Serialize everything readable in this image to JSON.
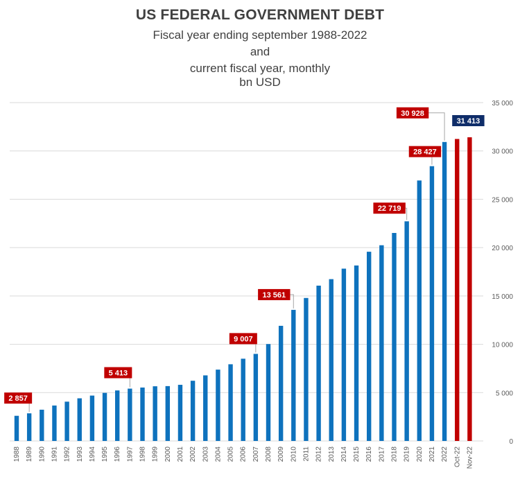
{
  "titles": {
    "line1": "US FEDERAL GOVERNMENT DEBT",
    "line2": "Fiscal year ending september 1988-2022",
    "line3": "and",
    "line4": "current fiscal year, monthly",
    "line5": "bn USD"
  },
  "colors": {
    "annual_bar": "#0E72BD",
    "monthly_bar": "#C00000",
    "annual_label_bg": "#C00000",
    "latest_label_bg": "#0F2D69",
    "grid": "#D9D9D9",
    "text": "#595959"
  },
  "chart_data": {
    "type": "bar",
    "title": "US FEDERAL GOVERNMENT DEBT",
    "ylim": [
      0,
      35000
    ],
    "y_ticks": [
      "0",
      "5 000",
      "10 000",
      "15 000",
      "20 000",
      "25 000",
      "30 000",
      "35 000"
    ],
    "y_tick_values": [
      0,
      5000,
      10000,
      15000,
      20000,
      25000,
      30000,
      35000
    ],
    "y_axis_side": "right",
    "grid": true,
    "categories": [
      "1988",
      "1989",
      "1990",
      "1991",
      "1992",
      "1993",
      "1994",
      "1995",
      "1996",
      "1997",
      "1998",
      "1999",
      "2000",
      "2001",
      "2002",
      "2003",
      "2004",
      "2005",
      "2006",
      "2007",
      "2008",
      "2009",
      "2010",
      "2011",
      "2012",
      "2013",
      "2014",
      "2015",
      "2016",
      "2017",
      "2018",
      "2019",
      "2020",
      "2021",
      "2022",
      "Oct-22",
      "Nov-22"
    ],
    "values": [
      2602,
      2857,
      3233,
      3665,
      4065,
      4411,
      4693,
      4974,
      5225,
      5413,
      5526,
      5656,
      5674,
      5807,
      6228,
      6783,
      7379,
      7933,
      8507,
      9007,
      10025,
      11910,
      13561,
      14790,
      16066,
      16738,
      17824,
      18151,
      19573,
      20245,
      21516,
      22719,
      26945,
      28427,
      30928,
      31238,
      31413
    ],
    "series_kind": [
      "annual",
      "annual",
      "annual",
      "annual",
      "annual",
      "annual",
      "annual",
      "annual",
      "annual",
      "annual",
      "annual",
      "annual",
      "annual",
      "annual",
      "annual",
      "annual",
      "annual",
      "annual",
      "annual",
      "annual",
      "annual",
      "annual",
      "annual",
      "annual",
      "annual",
      "annual",
      "annual",
      "annual",
      "annual",
      "annual",
      "annual",
      "annual",
      "annual",
      "annual",
      "annual",
      "monthly",
      "monthly"
    ],
    "data_labels": [
      {
        "category": "1989",
        "text": "2 857",
        "style": "red"
      },
      {
        "category": "1997",
        "text": "5 413",
        "style": "red"
      },
      {
        "category": "2007",
        "text": "9 007",
        "style": "red"
      },
      {
        "category": "2010",
        "text": "13 561",
        "style": "red"
      },
      {
        "category": "2019",
        "text": "22 719",
        "style": "red"
      },
      {
        "category": "2021",
        "text": "28 427",
        "style": "red"
      },
      {
        "category": "2022",
        "text": "30 928",
        "style": "red"
      },
      {
        "category": "Nov-22",
        "text": "31 413",
        "style": "navy"
      }
    ]
  }
}
